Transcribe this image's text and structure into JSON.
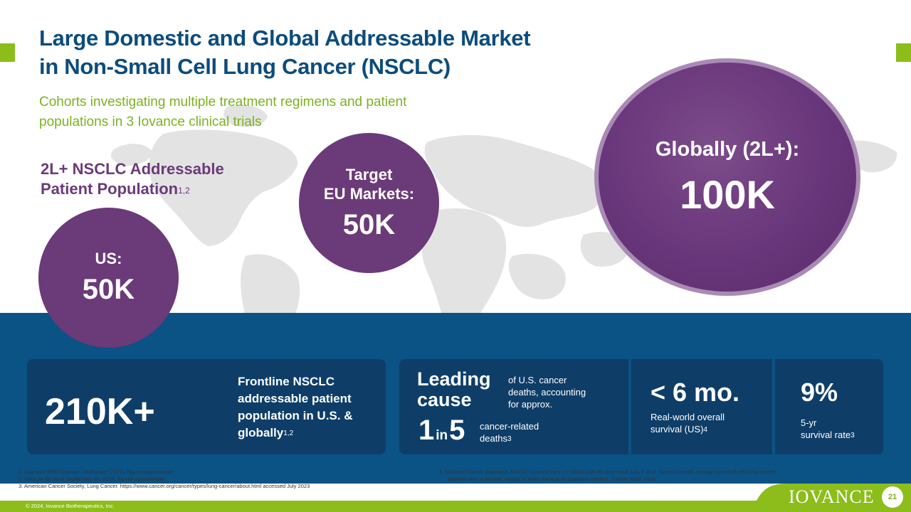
{
  "title": [
    "Large Domestic and Global Addressable Market",
    "in Non-Small Cell Lung Cancer (NSCLC)"
  ],
  "subtitle": [
    "Cohorts investigating multiple treatment regimens and patient",
    "populations in  3 Iovance clinical trials"
  ],
  "population_label": {
    "line1": "2L+ NSCLC Addressable",
    "line2": "Patient Population",
    "sup": "1,2"
  },
  "circles": {
    "us": {
      "label": "US:",
      "value": "50K"
    },
    "eu": {
      "label1": "Target",
      "label2": "EU Markets:",
      "value": "50K"
    },
    "global": {
      "label": "Globally (2L+):",
      "value": "100K"
    }
  },
  "stats": {
    "frontline": {
      "value": "210K+",
      "desc": [
        "Frontline NSCLC",
        "addressable patient",
        "population in U.S. &",
        "globally"
      ],
      "sup": "1,2"
    },
    "leading": {
      "title": [
        "Leading",
        "cause"
      ],
      "desc": [
        "of U.S. cancer",
        "deaths, accounting",
        "for approx."
      ],
      "one": "1",
      "in": "in",
      "five": "5",
      "cr_desc": [
        "cancer-related",
        "deaths"
      ],
      "cr_sup": "3"
    },
    "survival": {
      "value": "< 6 mo.",
      "desc": [
        "Real-world overall",
        "survival (US)"
      ],
      "sup": "4"
    },
    "rate": {
      "value": "9%",
      "desc": [
        "5-yr",
        "survival rate"
      ],
      "sup": "3"
    }
  },
  "footnotes_left": [
    "1.  Clarivate DRG Disease Landscape (2021), figures approximate",
    "2.  Data on file as of September 30, 2024, figures approximate",
    "3.  American Cancer Society, Lung Cancer. https://www.cancer.org/cancer/types/lung-cancer/about.html accessed July 2023"
  ],
  "footnotes_right": [
    "4.  National Cancer Database, NSCLC survival from >1 million pati  nts assessed. Lou Y et al. Survival trends among non-small-cell lung cancer",
    "patients over a decade: impact of initial therapy at academic centers. Cancer Med. 2018."
  ],
  "copyright": "© 2024, Iovance Biotherapeutics, Inc.",
  "logo": "IOVANCE",
  "page_number": "21",
  "colors": {
    "navy": "#0c4c7c",
    "purple": "#6b3a79",
    "green": "#8cbd1a",
    "blue_band": "#0b5285",
    "box": "#0e3e68"
  }
}
